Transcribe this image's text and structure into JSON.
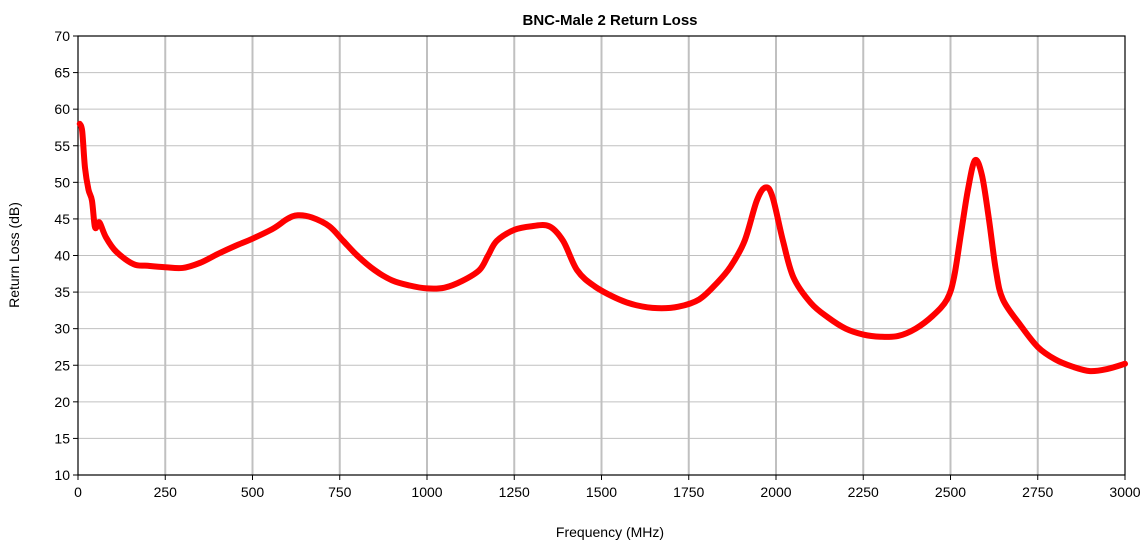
{
  "chart_data": {
    "type": "line",
    "title": "BNC-Male 2 Return Loss",
    "xlabel": "Frequency (MHz)",
    "ylabel": "Return Loss (dB)",
    "xlim": [
      0,
      3000
    ],
    "ylim": [
      10,
      70
    ],
    "x_ticks": [
      "0",
      "250",
      "500",
      "750",
      "1000",
      "1250",
      "1500",
      "1750",
      "2000",
      "2250",
      "2500",
      "2750",
      "3000"
    ],
    "y_ticks": [
      "10",
      "15",
      "20",
      "25",
      "30",
      "35",
      "40",
      "45",
      "50",
      "55",
      "60",
      "65",
      "70"
    ],
    "x_gridlines": true,
    "y_gridlines": true,
    "series": [
      {
        "color": "#ff0000",
        "points": [
          [
            5,
            58
          ],
          [
            12,
            57
          ],
          [
            20,
            52
          ],
          [
            30,
            49
          ],
          [
            40,
            47.5
          ],
          [
            48,
            44
          ],
          [
            55,
            44
          ],
          [
            62,
            44.5
          ],
          [
            80,
            42.5
          ],
          [
            110,
            40.5
          ],
          [
            160,
            38.8
          ],
          [
            200,
            38.6
          ],
          [
            250,
            38.4
          ],
          [
            300,
            38.3
          ],
          [
            350,
            39
          ],
          [
            400,
            40.2
          ],
          [
            450,
            41.3
          ],
          [
            500,
            42.3
          ],
          [
            560,
            43.7
          ],
          [
            600,
            45
          ],
          [
            630,
            45.5
          ],
          [
            670,
            45.2
          ],
          [
            720,
            44
          ],
          [
            760,
            42
          ],
          [
            800,
            40
          ],
          [
            850,
            38
          ],
          [
            900,
            36.6
          ],
          [
            950,
            35.9
          ],
          [
            1000,
            35.5
          ],
          [
            1050,
            35.6
          ],
          [
            1100,
            36.5
          ],
          [
            1150,
            38
          ],
          [
            1175,
            40
          ],
          [
            1200,
            42
          ],
          [
            1250,
            43.5
          ],
          [
            1300,
            44
          ],
          [
            1350,
            44
          ],
          [
            1390,
            42
          ],
          [
            1430,
            38
          ],
          [
            1480,
            35.8
          ],
          [
            1550,
            34
          ],
          [
            1600,
            33.2
          ],
          [
            1660,
            32.8
          ],
          [
            1720,
            33
          ],
          [
            1780,
            34
          ],
          [
            1830,
            36.2
          ],
          [
            1870,
            38.5
          ],
          [
            1910,
            42
          ],
          [
            1945,
            47.5
          ],
          [
            1970,
            49.3
          ],
          [
            1990,
            48
          ],
          [
            2020,
            42
          ],
          [
            2050,
            37
          ],
          [
            2100,
            33.5
          ],
          [
            2150,
            31.5
          ],
          [
            2200,
            30
          ],
          [
            2250,
            29.2
          ],
          [
            2300,
            28.9
          ],
          [
            2350,
            29
          ],
          [
            2400,
            30
          ],
          [
            2450,
            31.8
          ],
          [
            2490,
            34
          ],
          [
            2510,
            37
          ],
          [
            2530,
            43
          ],
          [
            2550,
            49
          ],
          [
            2570,
            53
          ],
          [
            2590,
            51
          ],
          [
            2610,
            45
          ],
          [
            2630,
            38
          ],
          [
            2650,
            34
          ],
          [
            2700,
            30.5
          ],
          [
            2750,
            27.5
          ],
          [
            2800,
            25.8
          ],
          [
            2850,
            24.8
          ],
          [
            2900,
            24.2
          ],
          [
            2950,
            24.5
          ],
          [
            3000,
            25.2
          ]
        ]
      }
    ]
  }
}
